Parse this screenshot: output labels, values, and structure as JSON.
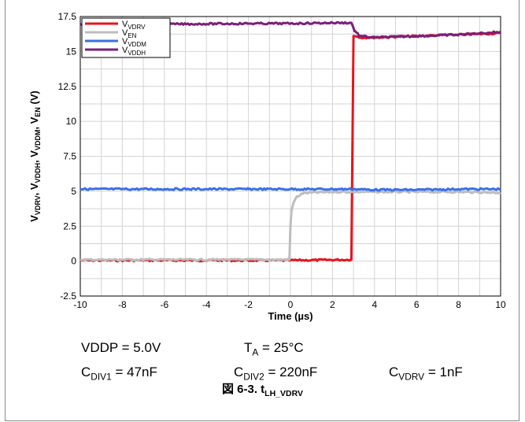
{
  "chart_data": {
    "type": "line",
    "xlabel": "Time (µs)",
    "ylabel_parts": [
      {
        "base": "V",
        "sub": "VDRV",
        "sep": ", "
      },
      {
        "base": "V",
        "sub": "VDDH",
        "sep": ", "
      },
      {
        "base": "V",
        "sub": "VDDM",
        "sep": ", "
      },
      {
        "base": "V",
        "sub": "EN",
        "sep": " (V)"
      }
    ],
    "xlim": [
      -10,
      10
    ],
    "ylim": [
      -2.5,
      17.5
    ],
    "xticks": [
      -10,
      -8,
      -6,
      -4,
      -2,
      0,
      2,
      4,
      6,
      8,
      10
    ],
    "yticks": [
      -2.5,
      0,
      2.5,
      5,
      7.5,
      10,
      12.5,
      15,
      17.5
    ],
    "ytick_labels": [
      "-2.5",
      "0",
      "2.5",
      "5",
      "7.5",
      "10",
      "12.5",
      "15",
      "17.5"
    ],
    "grid": true,
    "legend_position": "top-left",
    "series": [
      {
        "name": "VDRV",
        "label_base": "V",
        "label_sub": "VDRV",
        "color": "#e8141c",
        "x": [
          -10,
          0,
          2.85,
          2.9,
          3.0,
          3.05,
          3.3,
          4,
          5,
          6,
          7,
          8,
          9,
          10
        ],
        "y": [
          0.05,
          0.05,
          0.1,
          0.1,
          16.1,
          16.1,
          16.0,
          16.0,
          16.05,
          16.1,
          16.15,
          16.2,
          16.25,
          16.3
        ]
      },
      {
        "name": "VEN",
        "label_base": "V",
        "label_sub": "EN",
        "color": "#bdbdbd",
        "x": [
          -10,
          -0.05,
          0,
          0.05,
          0.15,
          0.3,
          0.6,
          1,
          2,
          3,
          4,
          6,
          8,
          10
        ],
        "y": [
          0.1,
          0.1,
          2.5,
          3.6,
          4.2,
          4.6,
          4.85,
          4.9,
          4.95,
          4.95,
          4.95,
          4.95,
          4.95,
          4.9
        ]
      },
      {
        "name": "VDDM",
        "label_base": "V",
        "label_sub": "VDDM",
        "color": "#3a6fe8",
        "x": [
          -10,
          -6,
          -2,
          0,
          2,
          3,
          4,
          6,
          8,
          10
        ],
        "y": [
          5.15,
          5.15,
          5.15,
          5.15,
          5.15,
          5.15,
          5.1,
          5.1,
          5.15,
          5.15
        ]
      },
      {
        "name": "VDDH",
        "label_base": "V",
        "label_sub": "VDDH",
        "color": "#7b1f7a",
        "x": [
          -10,
          -6,
          -2,
          0,
          2,
          2.9,
          3.05,
          3.3,
          4,
          5,
          6,
          7,
          8,
          9,
          10
        ],
        "y": [
          16.95,
          16.95,
          17.0,
          17.0,
          17.05,
          17.05,
          16.5,
          16.1,
          16.0,
          16.05,
          16.1,
          16.15,
          16.2,
          16.3,
          16.4
        ]
      }
    ]
  },
  "conditions": {
    "vddp": {
      "base": "VDDP",
      "sub": "",
      "value": " = 5.0V"
    },
    "ta": {
      "base": "T",
      "sub": "A",
      "value": " = 25°C"
    },
    "cdiv1": {
      "base": "C",
      "sub": "DIV1",
      "value": " = 47nF"
    },
    "cdiv2": {
      "base": "C",
      "sub": "DIV2",
      "value": " = 220nF"
    },
    "cvdrv": {
      "base": "C",
      "sub": "VDRV",
      "value": " = 1nF"
    }
  },
  "caption": {
    "prefix": "図 6-3. t",
    "sub": "LH_VDRV"
  }
}
